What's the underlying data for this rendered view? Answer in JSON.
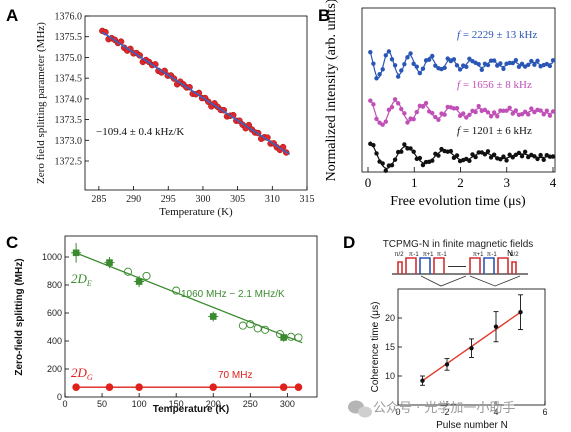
{
  "panel_labels": [
    "A",
    "B",
    "C",
    "D"
  ],
  "watermark": {
    "text": "公众号 · 光学加一小助手",
    "icon": "wechat-icon"
  },
  "chart_data": [
    {
      "panel": "A",
      "type": "scatter",
      "xlabel": "Temperature (K)",
      "ylabel": "Zero field splitting parameter (MHz)",
      "xlim": [
        283,
        315
      ],
      "ylim": [
        1371.8,
        1376.0
      ],
      "xticks": [
        285,
        290,
        295,
        300,
        305,
        310,
        315
      ],
      "yticks": [
        1372.5,
        1373.0,
        1373.5,
        1374.0,
        1374.5,
        1375.0,
        1375.5,
        1376.0
      ],
      "annotation": "−109.4 ± 0.4 kHz/K",
      "fit": {
        "x": [
          285.5,
          312.5
        ],
        "y": [
          1375.61,
          1372.66
        ],
        "color": "#3a62c4"
      },
      "points": {
        "color": "#e0282a",
        "x_start": 285.5,
        "x_end": 312.0,
        "count": 60,
        "slope": -0.1094,
        "intercept_at_285_5": 1375.61
      }
    },
    {
      "panel": "B",
      "type": "line",
      "xlabel": "Free evolution time (μs)",
      "ylabel": "Normalized intensity (arb. units)",
      "xlim": [
        0,
        4
      ],
      "xticks": [
        0,
        1,
        2,
        3,
        4
      ],
      "series": [
        {
          "name": "f = 2229 ± 13 kHz",
          "label_prefix": "f",
          "label_rest": " = 2229 ± 13 kHz",
          "color": "#2a56b5",
          "freq_mhz": 2.229,
          "offset": 2
        },
        {
          "name": "f = 1656 ± 8 kHz",
          "label_prefix": "f",
          "label_rest": " = 1656 ± 8 kHz",
          "color": "#c050b8",
          "freq_mhz": 1.656,
          "offset": 1
        },
        {
          "name": "f = 1201 ± 6 kHz",
          "label_prefix": "f",
          "label_rest": " = 1201 ± 6 kHz",
          "color": "#111111",
          "freq_mhz": 1.201,
          "offset": 0
        }
      ]
    },
    {
      "panel": "C",
      "type": "scatter",
      "xlabel": "Temperature (K)",
      "ylabel": "Zero-field splitting (MHz)",
      "xlim": [
        0,
        340
      ],
      "ylim": [
        0,
        1150
      ],
      "xticks": [
        0,
        50,
        100,
        150,
        200,
        250,
        300
      ],
      "yticks": [
        0,
        200,
        400,
        600,
        800,
        1000
      ],
      "series": [
        {
          "name": "2D_E",
          "label_main": "2D",
          "label_sub": "E",
          "color": "#3a8a2e",
          "filled": [
            [
              15,
              1030
            ],
            [
              60,
              960
            ],
            [
              100,
              825
            ],
            [
              200,
              575
            ],
            [
              295,
              425
            ]
          ],
          "filled_err": [
            70,
            40,
            40,
            35,
            30
          ],
          "open": [
            [
              85,
              895
            ],
            [
              110,
              865
            ],
            [
              150,
              760
            ],
            [
              240,
              510
            ],
            [
              250,
              520
            ],
            [
              260,
              490
            ],
            [
              270,
              480
            ],
            [
              290,
              450
            ],
            [
              305,
              430
            ],
            [
              315,
              425
            ]
          ],
          "fit": {
            "x": [
              15,
              320
            ],
            "y": [
              1028.5,
              388
            ]
          },
          "fit_label": "1060 MHz − 2.1 MHz/K"
        },
        {
          "name": "2D_G",
          "label_main": "2D",
          "label_sub": "G",
          "color": "#e0201a",
          "points": [
            [
              15,
              70
            ],
            [
              60,
              70
            ],
            [
              100,
              70
            ],
            [
              200,
              70
            ],
            [
              295,
              70
            ],
            [
              315,
              70
            ]
          ],
          "fit_label": "70 MHz"
        }
      ]
    },
    {
      "panel": "D",
      "type": "line",
      "title": "TCPMG-N in finite magnetic fields",
      "xlabel": "Pulse number N",
      "ylabel": "Coherence time (μs)",
      "xlim": [
        0,
        6
      ],
      "ylim": [
        5,
        25
      ],
      "xticks": [
        0,
        2,
        4,
        6
      ],
      "yticks": [
        10,
        15,
        20
      ],
      "x": [
        1,
        2,
        3,
        4,
        5
      ],
      "y": [
        9.2,
        12.0,
        14.8,
        18.5,
        21.0
      ],
      "err": [
        0.8,
        1.0,
        1.6,
        2.6,
        3.0
      ],
      "fit": {
        "x": [
          1,
          5
        ],
        "y": [
          9.2,
          21.0
        ],
        "color": "#e23a2a"
      },
      "pulse_labels": [
        "π/2",
        "π",
        "-1",
        "π",
        "+1",
        "π",
        "-1",
        "π",
        "+1",
        "π",
        "-1",
        "π/2"
      ],
      "n_label": "N"
    }
  ]
}
